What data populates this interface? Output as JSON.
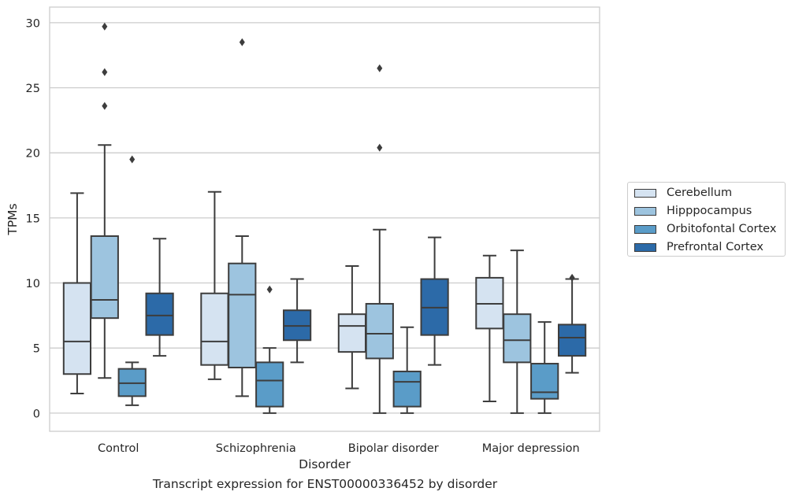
{
  "caption": "Transcript expression for ENST00000336452 by disorder",
  "chart_data": {
    "type": "box",
    "xlabel": "Disorder",
    "ylabel": "TPMs",
    "ylim": [
      -1.4,
      31.2
    ],
    "yticks": [
      0,
      5,
      10,
      15,
      20,
      25,
      30
    ],
    "grid": "horizontal",
    "legend_position": "right",
    "categories": [
      "Control",
      "Schizophrenia",
      "Bipolar disorder",
      "Major depression"
    ],
    "series": [
      {
        "name": "Cerebellum",
        "color": "#d5e3f1",
        "boxes": [
          {
            "whislo": 1.5,
            "q1": 3.0,
            "med": 5.5,
            "q3": 10.0,
            "whishi": 16.9,
            "fliers": []
          },
          {
            "whislo": 2.6,
            "q1": 3.7,
            "med": 5.5,
            "q3": 9.2,
            "whishi": 17.0,
            "fliers": []
          },
          {
            "whislo": 1.9,
            "q1": 4.7,
            "med": 6.7,
            "q3": 7.6,
            "whishi": 11.3,
            "fliers": []
          },
          {
            "whislo": 0.9,
            "q1": 6.5,
            "med": 8.4,
            "q3": 10.4,
            "whishi": 12.1,
            "fliers": []
          }
        ]
      },
      {
        "name": "Hipppocampus",
        "color": "#9dc4df",
        "boxes": [
          {
            "whislo": 2.7,
            "q1": 7.3,
            "med": 8.7,
            "q3": 13.6,
            "whishi": 20.6,
            "fliers": [
              23.6,
              26.2,
              29.7
            ]
          },
          {
            "whislo": 1.3,
            "q1": 3.5,
            "med": 9.1,
            "q3": 11.5,
            "whishi": 13.6,
            "fliers": [
              28.5
            ]
          },
          {
            "whislo": 0.0,
            "q1": 4.2,
            "med": 6.1,
            "q3": 8.4,
            "whishi": 14.1,
            "fliers": [
              20.4,
              26.5
            ]
          },
          {
            "whislo": 0.0,
            "q1": 3.9,
            "med": 5.6,
            "q3": 7.6,
            "whishi": 12.5,
            "fliers": []
          }
        ]
      },
      {
        "name": "Orbitofontal Cortex",
        "color": "#5a9cc8",
        "boxes": [
          {
            "whislo": 0.6,
            "q1": 1.3,
            "med": 2.3,
            "q3": 3.4,
            "whishi": 3.9,
            "fliers": [
              19.5
            ]
          },
          {
            "whislo": 0.0,
            "q1": 0.5,
            "med": 2.5,
            "q3": 3.9,
            "whishi": 5.0,
            "fliers": [
              9.5
            ]
          },
          {
            "whislo": 0.0,
            "q1": 0.5,
            "med": 2.4,
            "q3": 3.2,
            "whishi": 6.6,
            "fliers": []
          },
          {
            "whislo": 0.0,
            "q1": 1.1,
            "med": 1.6,
            "q3": 3.8,
            "whishi": 7.0,
            "fliers": []
          }
        ]
      },
      {
        "name": "Prefrontal Cortex",
        "color": "#2c6aa8",
        "boxes": [
          {
            "whislo": 4.4,
            "q1": 6.0,
            "med": 7.5,
            "q3": 9.2,
            "whishi": 13.4,
            "fliers": []
          },
          {
            "whislo": 3.9,
            "q1": 5.6,
            "med": 6.7,
            "q3": 7.9,
            "whishi": 10.3,
            "fliers": []
          },
          {
            "whislo": 3.7,
            "q1": 6.0,
            "med": 8.1,
            "q3": 10.3,
            "whishi": 13.5,
            "fliers": []
          },
          {
            "whislo": 3.1,
            "q1": 4.4,
            "med": 5.8,
            "q3": 6.8,
            "whishi": 10.3,
            "fliers": [
              10.4
            ]
          }
        ]
      }
    ]
  }
}
